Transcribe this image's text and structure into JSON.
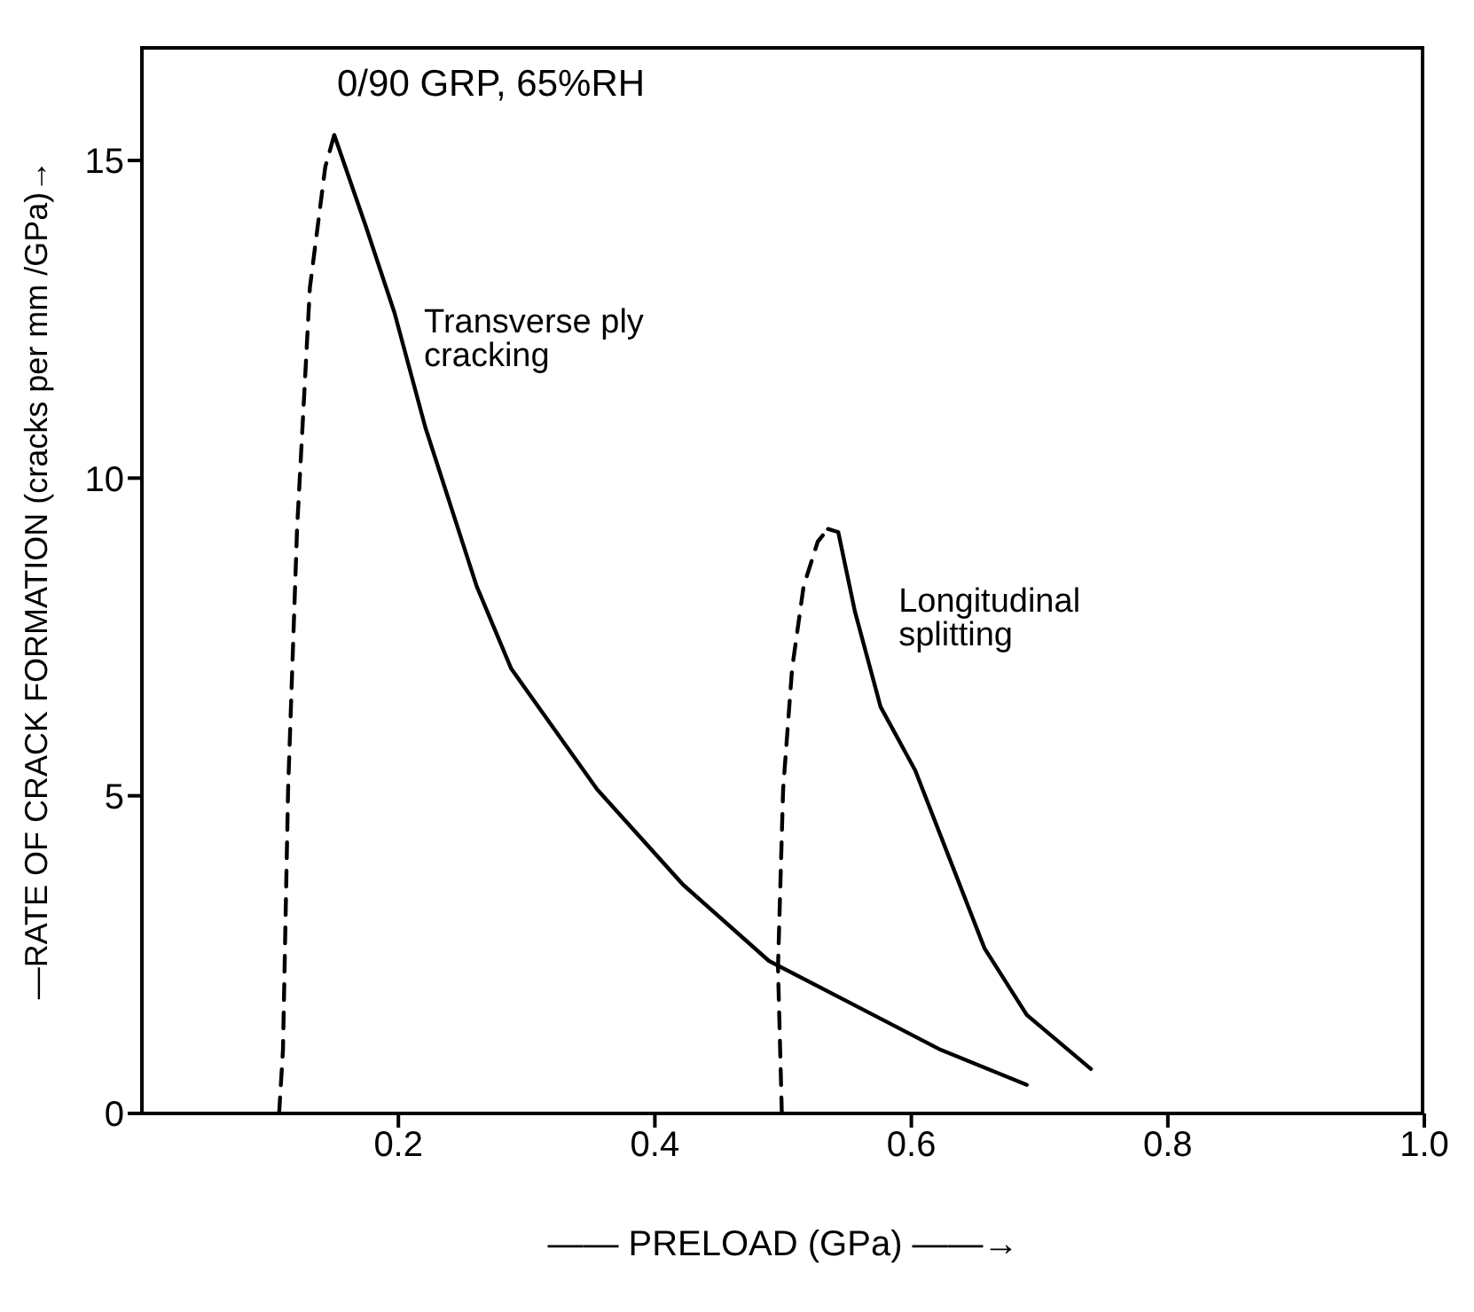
{
  "chart_data": {
    "type": "line",
    "title": "0/90 GRP, 65%RH",
    "xlabel": "—— PRELOAD (GPa) ——→",
    "ylabel": "—RATE OF CRACK FORMATION (cracks per mm /GPa)→",
    "series": [
      {
        "color": "#000000",
        "line_style": "dashed",
        "x": [
          0.107,
          0.11,
          0.114,
          0.121,
          0.131,
          0.143,
          0.15
        ],
        "values": [
          0,
          1.0,
          5.1,
          9.2,
          13.0,
          14.9,
          15.4
        ]
      },
      {
        "color": "#000000",
        "line_style": "solid",
        "x": [
          0.15,
          0.174,
          0.197,
          0.221,
          0.261,
          0.288,
          0.355,
          0.422,
          0.489,
          0.556,
          0.623,
          0.69
        ],
        "values": [
          15.4,
          14.0,
          12.6,
          10.8,
          8.3,
          7.0,
          5.1,
          3.6,
          2.4,
          1.7,
          1.0,
          0.45
        ]
      },
      {
        "color": "#000000",
        "line_style": "dashed",
        "x": [
          0.499,
          0.496,
          0.5,
          0.507,
          0.516,
          0.527,
          0.535
        ],
        "values": [
          0,
          2.3,
          5.1,
          7.0,
          8.3,
          9.0,
          9.2
        ]
      },
      {
        "color": "#000000",
        "line_style": "solid",
        "x": [
          0.535,
          0.543,
          0.556,
          0.576,
          0.603,
          0.63,
          0.657,
          0.69,
          0.74
        ],
        "values": [
          9.2,
          9.15,
          7.9,
          6.4,
          5.4,
          4.0,
          2.6,
          1.55,
          0.7
        ]
      }
    ],
    "annotations": [
      "Transverse ply\ncracking",
      "Longitudinal\nsplitting"
    ],
    "xlim": [
      0,
      1.0
    ],
    "xticks": [
      0.2,
      0.4,
      0.6,
      0.8,
      {
        "value": 1.0,
        "label": "1.0"
      }
    ],
    "ylim": [
      0,
      16.8
    ],
    "yticks": [
      0,
      5,
      10,
      15
    ],
    "grid": false,
    "marker": "none"
  }
}
